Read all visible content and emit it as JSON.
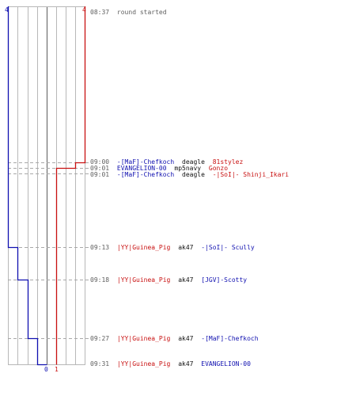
{
  "timeline": {
    "team_colors": {
      "blue": "#1010b0",
      "red": "#c81010",
      "time": "#606060",
      "weapon": "#101010",
      "grid": "#b8b8b8",
      "center": "#707070",
      "dash": "#a8a8a8"
    },
    "score_labels": {
      "blue_top": "4",
      "red_top": "4",
      "blue_bottom": "0",
      "red_bottom": "1"
    },
    "events": [
      {
        "time": "08:37",
        "kind": "info",
        "text": "round started"
      },
      {
        "time": "09:00",
        "kind": "kill",
        "killer": "-[MaF]-Chefkoch",
        "killer_team": "blue",
        "weapon": "deagle",
        "victim": "81stylez",
        "victim_team": "red"
      },
      {
        "time": "09:01",
        "kind": "kill",
        "killer": "EVANGELION-00",
        "killer_team": "blue",
        "weapon": "mp5navy",
        "victim": "Gonzo",
        "victim_team": "red"
      },
      {
        "time": "09:01",
        "kind": "kill",
        "killer": "-[MaF]-Chefkoch",
        "killer_team": "blue",
        "weapon": "deagle",
        "victim": "-|SoI|- Shinji_Ikari",
        "victim_team": "red"
      },
      {
        "time": "09:13",
        "kind": "kill",
        "killer": "|YY|Guinea_Pig",
        "killer_team": "red",
        "weapon": "ak47",
        "victim": "-|SoI|- Scully",
        "victim_team": "blue"
      },
      {
        "time": "09:18",
        "kind": "kill",
        "killer": "|YY|Guinea_Pig",
        "killer_team": "red",
        "weapon": "ak47",
        "victim": "[JGV]-Scotty",
        "victim_team": "blue"
      },
      {
        "time": "09:27",
        "kind": "kill",
        "killer": "|YY|Guinea_Pig",
        "killer_team": "red",
        "weapon": "ak47",
        "victim": "-[MaF]-Chefkoch",
        "victim_team": "blue"
      },
      {
        "time": "09:31",
        "kind": "kill",
        "killer": "|YY|Guinea_Pig",
        "killer_team": "red",
        "weapon": "ak47",
        "victim": "EVANGELION-00",
        "victim_team": "blue"
      }
    ]
  }
}
